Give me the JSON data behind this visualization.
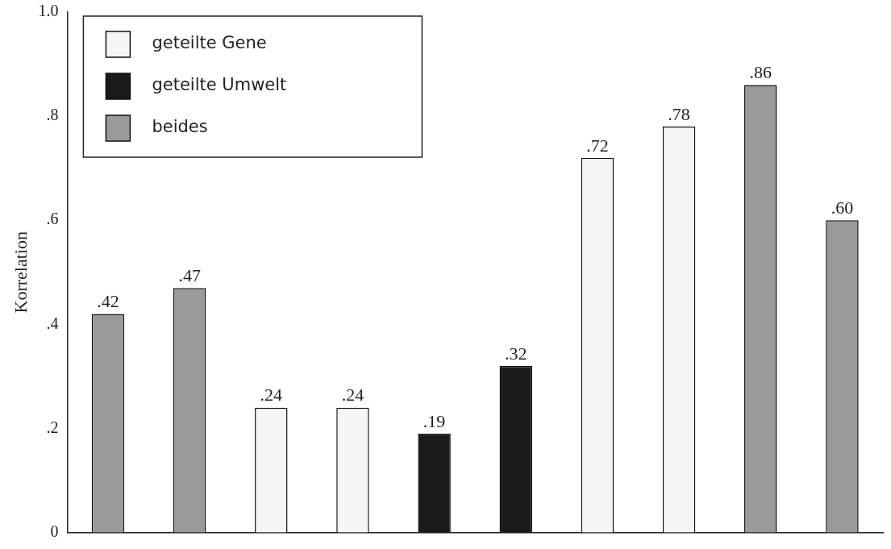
{
  "chart_data": {
    "type": "bar",
    "ylabel": "Korrelation",
    "categories": [
      null,
      null,
      null,
      null,
      null,
      null,
      null,
      null,
      null,
      null
    ],
    "series": [
      {
        "name": "geteilte Gene",
        "color": "#f5f5f5",
        "values": [
          null,
          null,
          0.24,
          0.24,
          null,
          null,
          0.72,
          0.78,
          null,
          null
        ],
        "value_labels": [
          null,
          null,
          ".24",
          ".24",
          null,
          null,
          ".72",
          ".78",
          null,
          null
        ]
      },
      {
        "name": "geteilte Umwelt",
        "color": "#1a1a1a",
        "values": [
          null,
          null,
          null,
          null,
          0.19,
          0.32,
          null,
          null,
          null,
          null
        ],
        "value_labels": [
          null,
          null,
          null,
          null,
          ".19",
          ".32",
          null,
          null,
          null,
          null
        ]
      },
      {
        "name": "beides",
        "color": "#9a9a9a",
        "values": [
          0.42,
          0.47,
          null,
          null,
          null,
          null,
          null,
          null,
          0.86,
          0.6
        ],
        "value_labels": [
          ".42",
          ".47",
          null,
          null,
          null,
          null,
          null,
          null,
          ".86",
          ".60"
        ]
      }
    ],
    "ylim": [
      0,
      1.0
    ],
    "yticks": [
      {
        "value": 0,
        "label": "0"
      },
      {
        "value": 0.2,
        "label": ".2"
      },
      {
        "value": 0.4,
        "label": ".4"
      },
      {
        "value": 0.6,
        "label": ".6"
      },
      {
        "value": 0.8,
        "label": ".8"
      },
      {
        "value": 1.0,
        "label": "1.0"
      }
    ],
    "grid": false,
    "legend": "top left"
  }
}
